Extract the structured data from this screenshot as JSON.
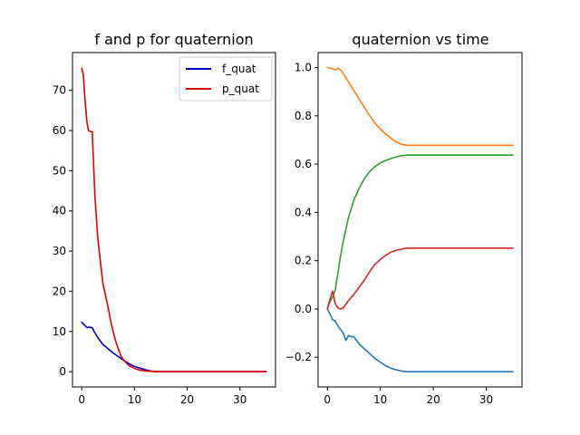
{
  "chart_data": [
    {
      "type": "line",
      "title": "f and p for quaternion",
      "xlabel": "",
      "ylabel": "",
      "xlim": [
        -1.75,
        36.75
      ],
      "ylim": [
        -3.8,
        79.4
      ],
      "xticks": [
        0,
        10,
        20,
        30
      ],
      "yticks": [
        0,
        10,
        20,
        30,
        40,
        50,
        60,
        70
      ],
      "grid": false,
      "legend": "top-right",
      "series": [
        {
          "name": "f_quat",
          "color": "#0000bf",
          "x": [
            0,
            0.5,
            1,
            1.5,
            2,
            2.5,
            3,
            3.5,
            4,
            5,
            6,
            7,
            8,
            9,
            10,
            11,
            12,
            13,
            14,
            15,
            20,
            25,
            30,
            35
          ],
          "y": [
            12.3,
            11.6,
            11.0,
            11.1,
            10.9,
            9.7,
            8.6,
            7.7,
            6.8,
            5.7,
            4.6,
            3.7,
            2.8,
            2.0,
            1.3,
            0.9,
            0.5,
            0.2,
            0.05,
            0,
            0,
            0,
            0,
            0
          ]
        },
        {
          "name": "p_quat",
          "color": "#e00000",
          "x": [
            0,
            0.3,
            0.6,
            1,
            1.3,
            1.6,
            2,
            2.5,
            3,
            3.5,
            4,
            4.5,
            5,
            5.5,
            6,
            6.5,
            7,
            7.5,
            8,
            9,
            10,
            11,
            12,
            13,
            14,
            15,
            20,
            25,
            30,
            35
          ],
          "y": [
            75.5,
            74,
            68,
            62,
            60,
            59.8,
            59.7,
            44,
            34,
            28,
            22,
            19,
            16,
            12.5,
            9.8,
            7.3,
            5.4,
            3.8,
            2.8,
            1.5,
            0.8,
            0.4,
            0.2,
            0.1,
            0.05,
            0,
            0,
            0,
            0,
            0
          ]
        }
      ]
    },
    {
      "type": "line",
      "title": "quaternion vs time",
      "xlabel": "",
      "ylabel": "",
      "xlim": [
        -1.75,
        36.75
      ],
      "ylim": [
        -0.323,
        1.062
      ],
      "xticks": [
        0,
        10,
        20,
        30
      ],
      "yticks": [
        -0.2,
        0.0,
        0.2,
        0.4,
        0.6,
        0.8,
        1.0
      ],
      "grid": false,
      "legend": "none",
      "series": [
        {
          "color": "#1f77b4",
          "x": [
            0,
            0.5,
            1,
            1.5,
            2,
            2.5,
            3,
            3.5,
            4,
            4.5,
            5,
            5.5,
            6,
            7,
            8,
            9,
            10,
            11,
            12,
            13,
            14,
            15,
            20,
            25,
            30,
            35
          ],
          "y": [
            0,
            -0.02,
            -0.045,
            -0.05,
            -0.07,
            -0.085,
            -0.1,
            -0.13,
            -0.11,
            -0.115,
            -0.115,
            -0.13,
            -0.145,
            -0.165,
            -0.185,
            -0.205,
            -0.22,
            -0.235,
            -0.245,
            -0.252,
            -0.257,
            -0.26,
            -0.26,
            -0.26,
            -0.26,
            -0.26
          ]
        },
        {
          "color": "#ff7f0e",
          "x": [
            0,
            0.5,
            1,
            1.5,
            2,
            2.5,
            3,
            4,
            5,
            6,
            7,
            8,
            9,
            10,
            11,
            12,
            13,
            14,
            15,
            20,
            25,
            30,
            35
          ],
          "y": [
            1.0,
            0.998,
            0.995,
            0.99,
            0.997,
            0.99,
            0.975,
            0.94,
            0.905,
            0.87,
            0.835,
            0.8,
            0.77,
            0.745,
            0.725,
            0.707,
            0.692,
            0.682,
            0.678,
            0.678,
            0.678,
            0.678,
            0.678
          ]
        },
        {
          "color": "#2ca02c",
          "x": [
            0,
            0.5,
            1,
            1.5,
            2,
            2.5,
            3,
            3.5,
            4,
            5,
            6,
            7,
            8,
            9,
            10,
            11,
            12,
            13,
            14,
            15,
            20,
            25,
            30,
            35
          ],
          "y": [
            0,
            0.03,
            0.05,
            0.08,
            0.15,
            0.22,
            0.28,
            0.33,
            0.38,
            0.45,
            0.5,
            0.54,
            0.57,
            0.59,
            0.605,
            0.615,
            0.623,
            0.63,
            0.635,
            0.637,
            0.637,
            0.637,
            0.637,
            0.637
          ]
        },
        {
          "color": "#d62728",
          "x": [
            0,
            0.5,
            1,
            1.5,
            2,
            2.5,
            3,
            3.5,
            4,
            5,
            6,
            7,
            8,
            9,
            10,
            11,
            12,
            13,
            14,
            15,
            20,
            25,
            30,
            35
          ],
          "y": [
            0,
            0.04,
            0.075,
            0.02,
            0.005,
            0.0,
            0.005,
            0.02,
            0.035,
            0.06,
            0.09,
            0.12,
            0.155,
            0.185,
            0.205,
            0.222,
            0.235,
            0.243,
            0.248,
            0.252,
            0.252,
            0.252,
            0.252,
            0.252
          ]
        }
      ]
    }
  ]
}
